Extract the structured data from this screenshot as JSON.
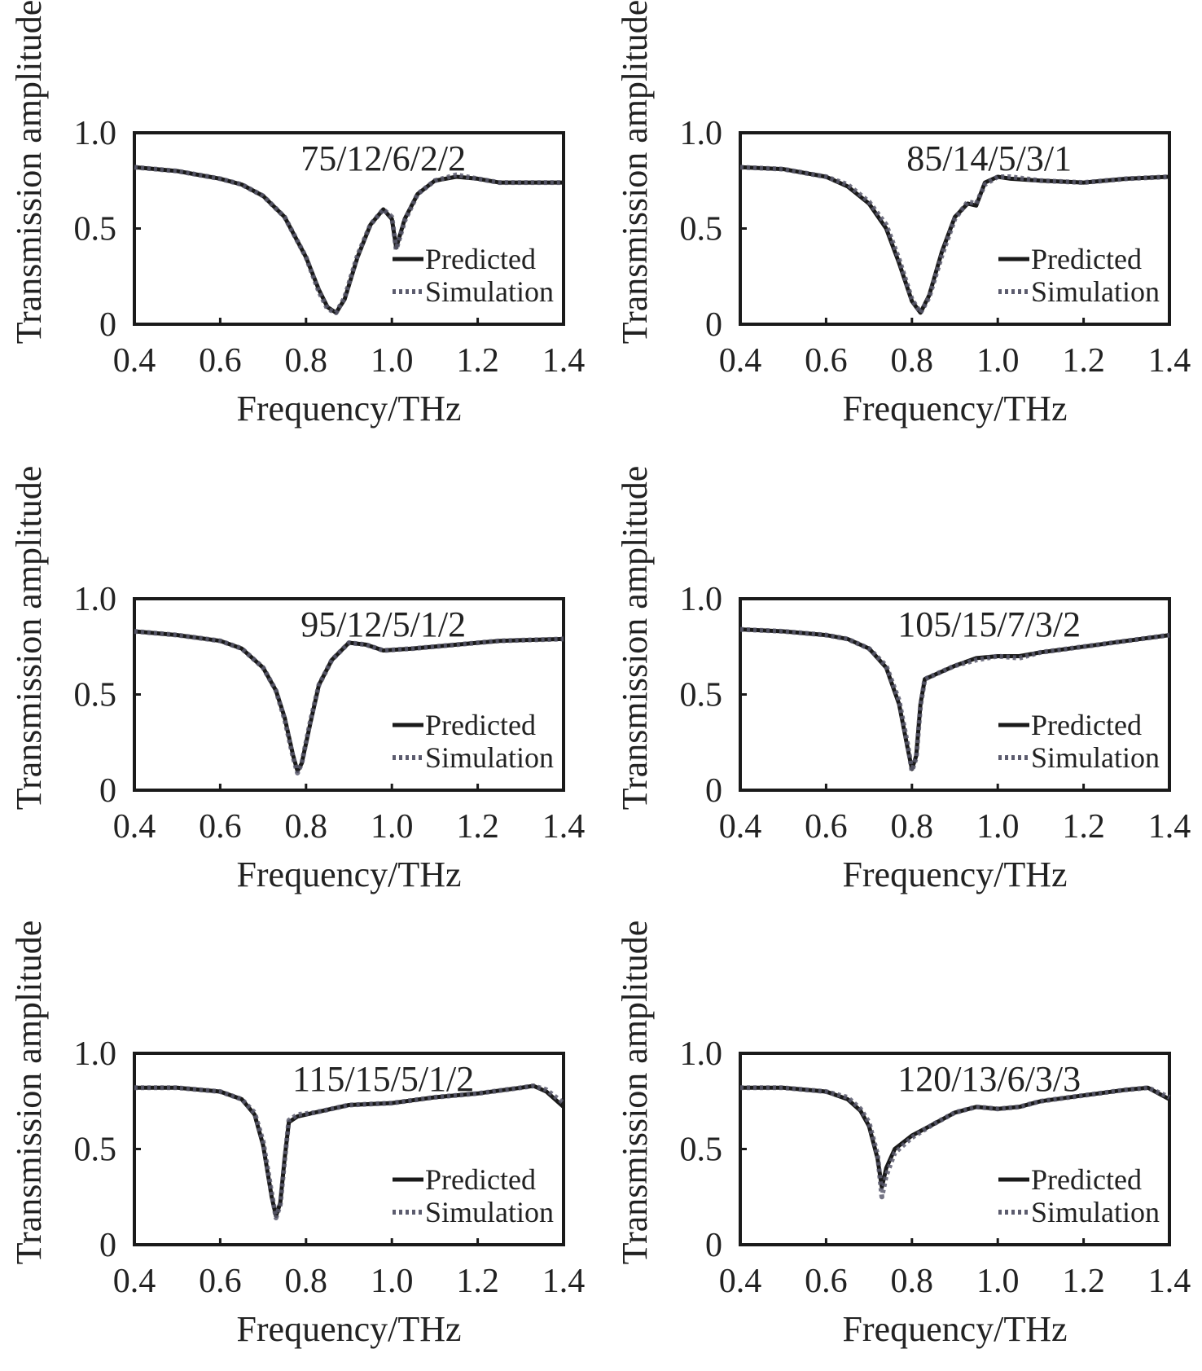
{
  "colors": {
    "predicted": "#1a1a1a",
    "simulation": "#5c5c6e",
    "accent_points": "#3a46a0",
    "frame": "#1a1a1a"
  },
  "chart_data": [
    {
      "type": "line",
      "title": "75/12/6/2/2",
      "xlabel": "Frequency/THz",
      "ylabel": "Transmission amplitude",
      "xlim": [
        0.4,
        1.4
      ],
      "ylim": [
        0,
        1.0
      ],
      "xticks": [
        "0.4",
        "0.6",
        "0.8",
        "1.0",
        "1.2",
        "1.4"
      ],
      "yticks": [
        "0",
        "0.5",
        "1.0"
      ],
      "legend": {
        "position": "lower-right",
        "entries": [
          "Predicted",
          "Simulation"
        ]
      },
      "series": [
        {
          "name": "Predicted",
          "style": "solid",
          "x": [
            0.4,
            0.5,
            0.6,
            0.65,
            0.7,
            0.75,
            0.8,
            0.83,
            0.85,
            0.87,
            0.89,
            0.92,
            0.95,
            0.98,
            1.0,
            1.01,
            1.03,
            1.06,
            1.1,
            1.15,
            1.2,
            1.25,
            1.3,
            1.4
          ],
          "y": [
            0.82,
            0.8,
            0.76,
            0.73,
            0.67,
            0.56,
            0.35,
            0.18,
            0.09,
            0.06,
            0.13,
            0.35,
            0.52,
            0.6,
            0.55,
            0.4,
            0.55,
            0.68,
            0.75,
            0.77,
            0.76,
            0.74,
            0.74,
            0.74
          ]
        },
        {
          "name": "Simulation",
          "style": "dotted",
          "x": [
            0.4,
            0.5,
            0.6,
            0.65,
            0.7,
            0.75,
            0.8,
            0.83,
            0.85,
            0.87,
            0.89,
            0.92,
            0.95,
            0.98,
            1.0,
            1.01,
            1.03,
            1.06,
            1.1,
            1.15,
            1.2,
            1.25,
            1.3,
            1.4
          ],
          "y": [
            0.82,
            0.8,
            0.76,
            0.73,
            0.67,
            0.56,
            0.35,
            0.17,
            0.08,
            0.06,
            0.14,
            0.36,
            0.52,
            0.6,
            0.56,
            0.39,
            0.54,
            0.68,
            0.75,
            0.78,
            0.76,
            0.74,
            0.74,
            0.74
          ]
        }
      ]
    },
    {
      "type": "line",
      "title": "85/14/5/3/1",
      "xlabel": "Frequency/THz",
      "ylabel": "Transmission amplitude",
      "xlim": [
        0.4,
        1.4
      ],
      "ylim": [
        0,
        1.0
      ],
      "xticks": [
        "0.4",
        "0.6",
        "0.8",
        "1.0",
        "1.2",
        "1.4"
      ],
      "yticks": [
        "0",
        "0.5",
        "1.0"
      ],
      "legend": {
        "position": "lower-right",
        "entries": [
          "Predicted",
          "Simulation"
        ]
      },
      "series": [
        {
          "name": "Predicted",
          "style": "solid",
          "x": [
            0.4,
            0.5,
            0.6,
            0.65,
            0.7,
            0.74,
            0.77,
            0.8,
            0.82,
            0.84,
            0.87,
            0.9,
            0.93,
            0.95,
            0.97,
            1.0,
            1.03,
            1.1,
            1.2,
            1.3,
            1.4
          ],
          "y": [
            0.82,
            0.81,
            0.77,
            0.72,
            0.63,
            0.5,
            0.32,
            0.12,
            0.06,
            0.15,
            0.38,
            0.56,
            0.63,
            0.62,
            0.74,
            0.77,
            0.76,
            0.75,
            0.74,
            0.76,
            0.77
          ]
        },
        {
          "name": "Simulation",
          "style": "dotted",
          "x": [
            0.4,
            0.5,
            0.6,
            0.65,
            0.7,
            0.74,
            0.77,
            0.8,
            0.82,
            0.84,
            0.87,
            0.9,
            0.93,
            0.95,
            0.97,
            1.0,
            1.03,
            1.1,
            1.2,
            1.3,
            1.4
          ],
          "y": [
            0.82,
            0.81,
            0.77,
            0.73,
            0.64,
            0.52,
            0.34,
            0.13,
            0.06,
            0.14,
            0.36,
            0.55,
            0.64,
            0.63,
            0.73,
            0.77,
            0.77,
            0.75,
            0.74,
            0.76,
            0.77
          ]
        }
      ]
    },
    {
      "type": "line",
      "title": "95/12/5/1/2",
      "xlabel": "Frequency/THz",
      "ylabel": "Transmission amplitude",
      "xlim": [
        0.4,
        1.4
      ],
      "ylim": [
        0,
        1.0
      ],
      "xticks": [
        "0.4",
        "0.6",
        "0.8",
        "1.0",
        "1.2",
        "1.4"
      ],
      "yticks": [
        "0",
        "0.5",
        "1.0"
      ],
      "legend": {
        "position": "lower-right",
        "entries": [
          "Predicted",
          "Simulation"
        ]
      },
      "series": [
        {
          "name": "Predicted",
          "style": "solid",
          "x": [
            0.4,
            0.5,
            0.6,
            0.65,
            0.7,
            0.73,
            0.75,
            0.77,
            0.78,
            0.79,
            0.81,
            0.83,
            0.86,
            0.9,
            0.94,
            0.98,
            1.05,
            1.15,
            1.25,
            1.4
          ],
          "y": [
            0.83,
            0.81,
            0.78,
            0.74,
            0.64,
            0.52,
            0.38,
            0.18,
            0.1,
            0.14,
            0.35,
            0.55,
            0.68,
            0.77,
            0.76,
            0.73,
            0.74,
            0.76,
            0.78,
            0.79
          ]
        },
        {
          "name": "Simulation",
          "style": "dotted",
          "x": [
            0.4,
            0.5,
            0.6,
            0.65,
            0.7,
            0.73,
            0.75,
            0.77,
            0.78,
            0.79,
            0.81,
            0.83,
            0.86,
            0.9,
            0.94,
            0.98,
            1.05,
            1.15,
            1.25,
            1.4
          ],
          "y": [
            0.83,
            0.81,
            0.78,
            0.74,
            0.64,
            0.52,
            0.37,
            0.17,
            0.09,
            0.14,
            0.36,
            0.55,
            0.68,
            0.77,
            0.76,
            0.73,
            0.74,
            0.76,
            0.78,
            0.79
          ]
        }
      ]
    },
    {
      "type": "line",
      "title": "105/15/7/3/2",
      "xlabel": "Frequency/THz",
      "ylabel": "Transmission amplitude",
      "xlim": [
        0.4,
        1.4
      ],
      "ylim": [
        0,
        1.0
      ],
      "xticks": [
        "0.4",
        "0.6",
        "0.8",
        "1.0",
        "1.2",
        "1.4"
      ],
      "yticks": [
        "0",
        "0.5",
        "1.0"
      ],
      "legend": {
        "position": "lower-right",
        "entries": [
          "Predicted",
          "Simulation"
        ]
      },
      "series": [
        {
          "name": "Predicted",
          "style": "solid",
          "x": [
            0.4,
            0.5,
            0.6,
            0.65,
            0.7,
            0.74,
            0.77,
            0.79,
            0.8,
            0.81,
            0.82,
            0.83,
            0.85,
            0.9,
            0.95,
            1.0,
            1.05,
            1.1,
            1.2,
            1.3,
            1.4
          ],
          "y": [
            0.84,
            0.83,
            0.81,
            0.79,
            0.74,
            0.64,
            0.45,
            0.22,
            0.11,
            0.18,
            0.45,
            0.58,
            0.6,
            0.65,
            0.69,
            0.7,
            0.7,
            0.72,
            0.75,
            0.78,
            0.81
          ]
        },
        {
          "name": "Simulation",
          "style": "dotted",
          "x": [
            0.4,
            0.5,
            0.6,
            0.65,
            0.7,
            0.74,
            0.77,
            0.79,
            0.8,
            0.81,
            0.82,
            0.83,
            0.85,
            0.9,
            0.95,
            1.0,
            1.05,
            1.1,
            1.2,
            1.3,
            1.4
          ],
          "y": [
            0.84,
            0.83,
            0.81,
            0.79,
            0.74,
            0.65,
            0.47,
            0.24,
            0.1,
            0.17,
            0.44,
            0.58,
            0.6,
            0.65,
            0.68,
            0.7,
            0.69,
            0.72,
            0.75,
            0.78,
            0.81
          ]
        }
      ]
    },
    {
      "type": "line",
      "title": "115/15/5/1/2",
      "xlabel": "Frequency/THz",
      "ylabel": "Transmission amplitude",
      "xlim": [
        0.4,
        1.4
      ],
      "ylim": [
        0,
        1.0
      ],
      "xticks": [
        "0.4",
        "0.6",
        "0.8",
        "1.0",
        "1.2",
        "1.4"
      ],
      "yticks": [
        "0",
        "0.5",
        "1.0"
      ],
      "legend": {
        "position": "lower-right",
        "entries": [
          "Predicted",
          "Simulation"
        ]
      },
      "series": [
        {
          "name": "Predicted",
          "style": "solid",
          "x": [
            0.4,
            0.5,
            0.6,
            0.65,
            0.68,
            0.7,
            0.72,
            0.73,
            0.74,
            0.75,
            0.76,
            0.78,
            0.82,
            0.9,
            1.0,
            1.1,
            1.2,
            1.3,
            1.33,
            1.36,
            1.4
          ],
          "y": [
            0.82,
            0.82,
            0.8,
            0.76,
            0.68,
            0.52,
            0.25,
            0.15,
            0.22,
            0.45,
            0.64,
            0.67,
            0.69,
            0.73,
            0.74,
            0.77,
            0.79,
            0.82,
            0.83,
            0.8,
            0.72
          ]
        },
        {
          "name": "Simulation",
          "style": "dotted",
          "x": [
            0.4,
            0.5,
            0.6,
            0.65,
            0.68,
            0.7,
            0.72,
            0.73,
            0.74,
            0.75,
            0.76,
            0.78,
            0.82,
            0.9,
            1.0,
            1.1,
            1.2,
            1.3,
            1.33,
            1.36,
            1.4
          ],
          "y": [
            0.82,
            0.82,
            0.8,
            0.76,
            0.69,
            0.54,
            0.27,
            0.14,
            0.21,
            0.44,
            0.65,
            0.68,
            0.69,
            0.73,
            0.74,
            0.77,
            0.79,
            0.82,
            0.83,
            0.81,
            0.74
          ]
        }
      ]
    },
    {
      "type": "line",
      "title": "120/13/6/3/3",
      "xlabel": "Frequency/THz",
      "ylabel": "Transmission amplitude",
      "xlim": [
        0.4,
        1.4
      ],
      "ylim": [
        0,
        1.0
      ],
      "xticks": [
        "0.4",
        "0.6",
        "0.8",
        "1.0",
        "1.2",
        "1.4"
      ],
      "yticks": [
        "0",
        "0.5",
        "1.0"
      ],
      "legend": {
        "position": "lower-right",
        "entries": [
          "Predicted",
          "Simulation"
        ]
      },
      "series": [
        {
          "name": "Predicted",
          "style": "solid",
          "x": [
            0.4,
            0.5,
            0.6,
            0.65,
            0.68,
            0.7,
            0.72,
            0.73,
            0.74,
            0.76,
            0.8,
            0.85,
            0.9,
            0.95,
            1.0,
            1.05,
            1.1,
            1.2,
            1.3,
            1.35,
            1.4
          ],
          "y": [
            0.82,
            0.82,
            0.8,
            0.76,
            0.7,
            0.62,
            0.45,
            0.3,
            0.4,
            0.5,
            0.57,
            0.63,
            0.69,
            0.72,
            0.71,
            0.72,
            0.75,
            0.78,
            0.81,
            0.82,
            0.76
          ]
        },
        {
          "name": "Simulation",
          "style": "dotted",
          "x": [
            0.4,
            0.5,
            0.6,
            0.65,
            0.68,
            0.7,
            0.72,
            0.73,
            0.74,
            0.76,
            0.8,
            0.85,
            0.9,
            0.95,
            1.0,
            1.05,
            1.1,
            1.2,
            1.3,
            1.35,
            1.4
          ],
          "y": [
            0.82,
            0.82,
            0.8,
            0.77,
            0.71,
            0.64,
            0.47,
            0.25,
            0.36,
            0.48,
            0.56,
            0.63,
            0.69,
            0.72,
            0.71,
            0.72,
            0.75,
            0.78,
            0.81,
            0.82,
            0.77
          ]
        }
      ]
    }
  ]
}
